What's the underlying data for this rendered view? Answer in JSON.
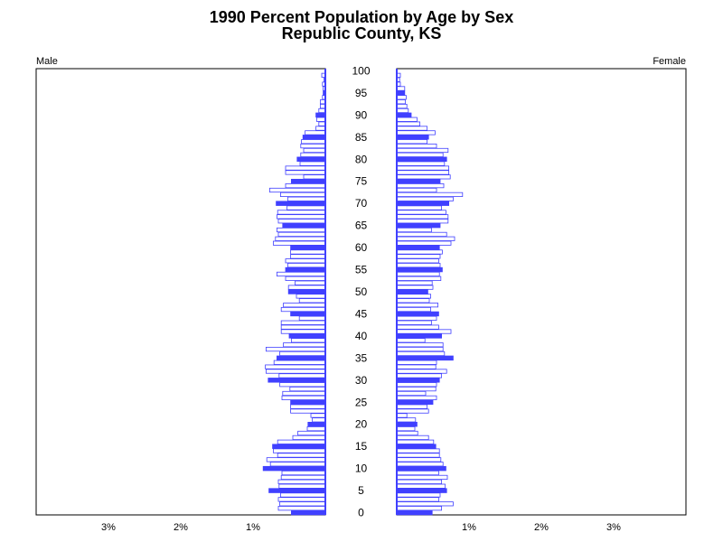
{
  "chart_data": {
    "type": "bar",
    "title": "1990 Percent Population by Age by Sex",
    "subtitle": "Republic County, KS",
    "left_panel_label": "Male",
    "right_panel_label": "Female",
    "ages": [
      0,
      1,
      2,
      3,
      4,
      5,
      6,
      7,
      8,
      9,
      10,
      11,
      12,
      13,
      14,
      15,
      16,
      17,
      18,
      19,
      20,
      21,
      22,
      23,
      24,
      25,
      26,
      27,
      28,
      29,
      30,
      31,
      32,
      33,
      34,
      35,
      36,
      37,
      38,
      39,
      40,
      41,
      42,
      43,
      44,
      45,
      46,
      47,
      48,
      49,
      50,
      51,
      52,
      53,
      54,
      55,
      56,
      57,
      58,
      59,
      60,
      61,
      62,
      63,
      64,
      65,
      66,
      67,
      68,
      69,
      70,
      71,
      72,
      73,
      74,
      75,
      76,
      77,
      78,
      79,
      80,
      81,
      82,
      83,
      84,
      85,
      86,
      87,
      88,
      89,
      90,
      91,
      92,
      93,
      94,
      95,
      96,
      97,
      98,
      99,
      100
    ],
    "age_tick_labels": [
      "0",
      "5",
      "10",
      "15",
      "20",
      "25",
      "30",
      "35",
      "40",
      "45",
      "50",
      "55",
      "60",
      "65",
      "70",
      "75",
      "80",
      "85",
      "90",
      "95",
      "100"
    ],
    "x_tick_labels": [
      "3%",
      "2%",
      "1%",
      "1%",
      "2%",
      "3%"
    ],
    "xlim": [
      0,
      4
    ],
    "highlight_every": 5,
    "series": [
      {
        "name": "Male",
        "values": [
          0.47,
          0.65,
          0.63,
          0.65,
          0.62,
          0.78,
          0.64,
          0.65,
          0.61,
          0.6,
          0.86,
          0.76,
          0.81,
          0.66,
          0.72,
          0.73,
          0.66,
          0.45,
          0.38,
          0.25,
          0.24,
          0.18,
          0.2,
          0.48,
          0.48,
          0.48,
          0.6,
          0.59,
          0.49,
          0.63,
          0.79,
          0.64,
          0.82,
          0.83,
          0.71,
          0.67,
          0.63,
          0.82,
          0.58,
          0.47,
          0.5,
          0.61,
          0.61,
          0.61,
          0.36,
          0.48,
          0.61,
          0.58,
          0.36,
          0.4,
          0.51,
          0.51,
          0.42,
          0.55,
          0.67,
          0.55,
          0.52,
          0.55,
          0.48,
          0.48,
          0.48,
          0.72,
          0.69,
          0.65,
          0.67,
          0.59,
          0.65,
          0.67,
          0.66,
          0.53,
          0.68,
          0.52,
          0.62,
          0.77,
          0.55,
          0.47,
          0.3,
          0.55,
          0.55,
          0.35,
          0.39,
          0.34,
          0.3,
          0.34,
          0.33,
          0.31,
          0.28,
          0.13,
          0.09,
          0.12,
          0.13,
          0.09,
          0.07,
          0.07,
          0.04,
          0.03,
          0.03,
          0.04,
          0.02,
          0.05,
          0.0
        ]
      },
      {
        "name": "Female",
        "values": [
          0.49,
          0.62,
          0.78,
          0.58,
          0.6,
          0.69,
          0.67,
          0.62,
          0.7,
          0.58,
          0.68,
          0.64,
          0.61,
          0.59,
          0.59,
          0.54,
          0.51,
          0.44,
          0.29,
          0.25,
          0.28,
          0.26,
          0.14,
          0.44,
          0.42,
          0.5,
          0.55,
          0.4,
          0.54,
          0.55,
          0.59,
          0.62,
          0.69,
          0.54,
          0.55,
          0.78,
          0.66,
          0.64,
          0.64,
          0.39,
          0.62,
          0.75,
          0.58,
          0.48,
          0.55,
          0.58,
          0.47,
          0.57,
          0.45,
          0.47,
          0.43,
          0.5,
          0.49,
          0.61,
          0.59,
          0.63,
          0.6,
          0.58,
          0.6,
          0.63,
          0.59,
          0.75,
          0.8,
          0.69,
          0.48,
          0.6,
          0.71,
          0.71,
          0.68,
          0.62,
          0.72,
          0.78,
          0.91,
          0.55,
          0.65,
          0.6,
          0.74,
          0.72,
          0.72,
          0.66,
          0.69,
          0.64,
          0.71,
          0.55,
          0.42,
          0.44,
          0.53,
          0.42,
          0.32,
          0.28,
          0.2,
          0.16,
          0.14,
          0.12,
          0.13,
          0.11,
          0.11,
          0.05,
          0.04,
          0.05,
          0.0
        ]
      }
    ],
    "bar_color_regular": "#ffffff",
    "bar_outline_color": "#4040ff",
    "bar_color_highlight": "#4040ff"
  }
}
